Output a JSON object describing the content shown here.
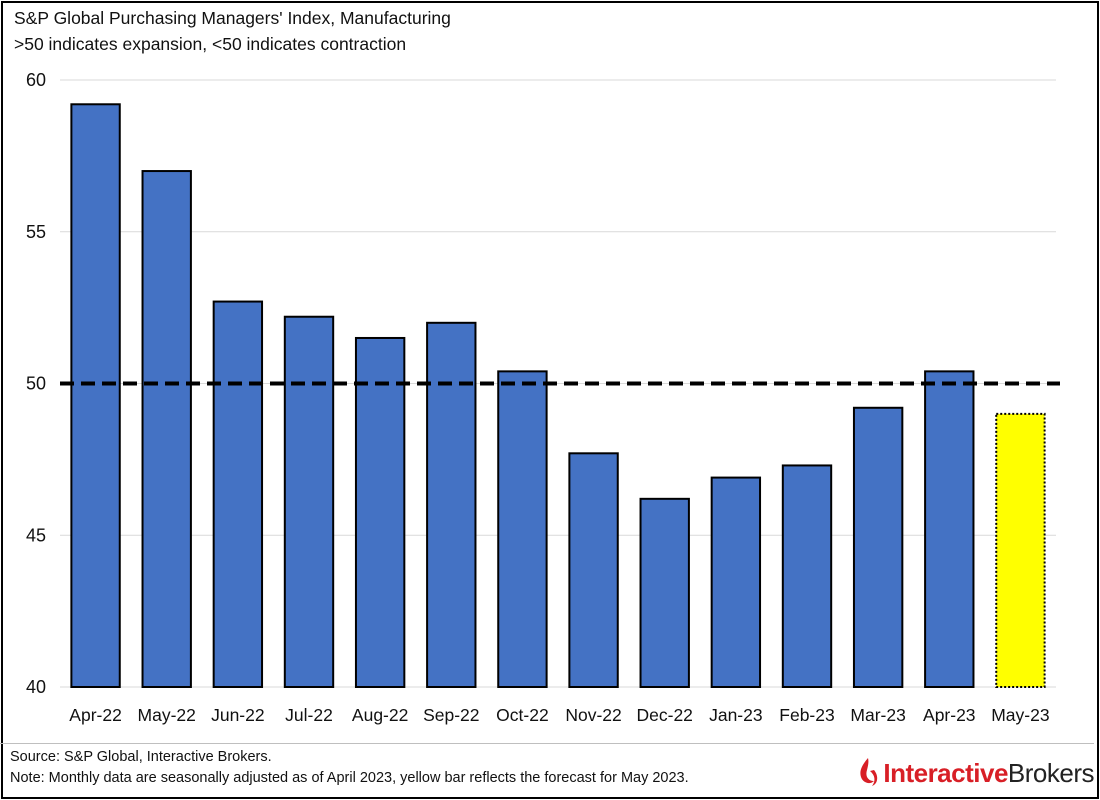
{
  "chart_data": {
    "type": "bar",
    "title": "S&P Global Purchasing Managers' Index, Manufacturing",
    "subtitle": ">50 indicates expansion, <50 indicates contraction",
    "categories": [
      "Apr-22",
      "May-22",
      "Jun-22",
      "Jul-22",
      "Aug-22",
      "Sep-22",
      "Oct-22",
      "Nov-22",
      "Dec-22",
      "Jan-23",
      "Feb-23",
      "Mar-23",
      "Apr-23",
      "May-23"
    ],
    "values": [
      59.2,
      57.0,
      52.7,
      52.2,
      51.5,
      52.0,
      50.4,
      47.7,
      46.2,
      46.9,
      47.3,
      49.2,
      50.4,
      49.0
    ],
    "forecast_index": 13,
    "ylim": [
      40,
      60
    ],
    "yticks": [
      40,
      45,
      50,
      55,
      60
    ],
    "reference_line": 50,
    "grid": true,
    "colors": {
      "bar": "#4472c4",
      "forecast": "#ffff00",
      "edge": "#000000",
      "grid": "#d9d9d9"
    }
  },
  "footer": {
    "source": "Source: S&P Global, Interactive Brokers.",
    "note": "Note: Monthly data are seasonally adjusted as of April 2023, yellow bar reflects the forecast for May 2023."
  },
  "logo": {
    "part1": "Interactive",
    "part2": "Brokers"
  }
}
